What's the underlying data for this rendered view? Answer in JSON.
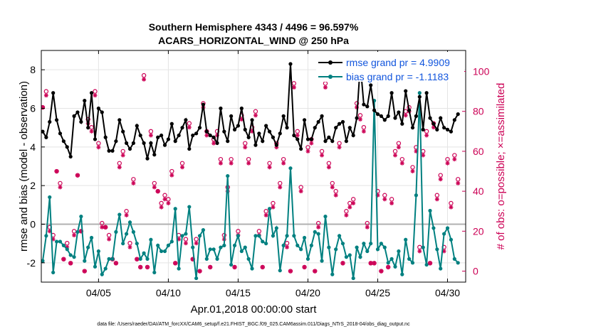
{
  "chart_data": {
    "type": "line",
    "title_line1": "Southern Hemisphere 4343 / 4496 = 96.597%",
    "title_line2": "ACARS_HORIZONTAL_WIND @ 250 hPa",
    "xlabel": "Apr.01,2018 00:00:00 start",
    "ylabel": "rmse and bias (model - observation)",
    "y2label": "# of obs: o=possible; ×=assimilated",
    "xlim": [
      0.9,
      31.3
    ],
    "ylim": [
      -3.0,
      9.0
    ],
    "y2lim": [
      -5.5,
      110.5
    ],
    "x_ticks": [
      5,
      10,
      15,
      20,
      25,
      30
    ],
    "x_tick_labels": [
      "04/05",
      "04/10",
      "04/15",
      "04/20",
      "04/25",
      "04/30"
    ],
    "y_ticks": [
      -2,
      0,
      2,
      4,
      6,
      8
    ],
    "y_tick_labels": [
      "-2",
      "0",
      "2",
      "4",
      "6",
      "8"
    ],
    "y2_ticks": [
      0,
      20,
      40,
      60,
      80,
      100
    ],
    "y2_tick_labels": [
      "0",
      "20",
      "40",
      "60",
      "80",
      "100"
    ],
    "zero_line": 0,
    "footer": "data file: /Users/raeder/DAI/ATM_forcXX/CAM6_setup/f.e21.FHIST_BGC.f09_025.CAM6assim.011/Diags_NTrS_2018-04/obs_diag_output.nc",
    "colors": {
      "rmse": "#000000",
      "bias": "#008080",
      "obs": "#cc0055",
      "zero": "#b0b0b0"
    },
    "series": [
      {
        "name": "rmse",
        "legend": "rmse grand pr = 4.9909",
        "x": [
          1.0,
          1.25,
          1.5,
          1.75,
          2.0,
          2.25,
          2.5,
          2.75,
          3.0,
          3.25,
          3.5,
          3.75,
          4.0,
          4.25,
          4.5,
          4.75,
          5.0,
          5.25,
          5.5,
          5.75,
          6.0,
          6.25,
          6.5,
          6.75,
          7.0,
          7.25,
          7.5,
          7.75,
          8.0,
          8.25,
          8.5,
          8.75,
          9.0,
          9.25,
          9.5,
          9.75,
          10.0,
          10.25,
          10.5,
          10.75,
          11.0,
          11.25,
          11.5,
          11.75,
          12.0,
          12.25,
          12.5,
          12.75,
          13.0,
          13.25,
          13.5,
          13.75,
          14.0,
          14.25,
          14.5,
          14.75,
          15.0,
          15.25,
          15.5,
          15.75,
          16.0,
          16.25,
          16.5,
          16.75,
          17.0,
          17.25,
          17.5,
          17.75,
          18.0,
          18.25,
          18.5,
          18.75,
          19.0,
          19.25,
          19.5,
          19.75,
          20.0,
          20.25,
          20.5,
          20.75,
          21.0,
          21.25,
          21.5,
          21.75,
          22.0,
          22.25,
          22.5,
          22.75,
          23.0,
          23.25,
          23.5,
          23.75,
          24.0,
          24.25,
          24.5,
          24.75,
          25.0,
          25.25,
          25.5,
          25.75,
          26.0,
          26.25,
          26.5,
          26.75,
          27.0,
          27.25,
          27.5,
          27.75,
          28.0,
          28.25,
          28.5,
          28.75,
          29.0,
          29.25,
          29.5,
          29.75,
          30.0,
          30.25,
          30.5,
          30.75
        ],
        "values": [
          4.8,
          4.5,
          5.3,
          6.8,
          5.4,
          4.7,
          4.3,
          4.0,
          3.5,
          5.6,
          5.8,
          5.3,
          6.4,
          5.0,
          6.8,
          4.4,
          6.0,
          5.8,
          4.5,
          3.8,
          3.8,
          4.3,
          5.4,
          4.8,
          4.2,
          3.9,
          4.2,
          5.1,
          4.6,
          4.2,
          3.4,
          4.2,
          3.6,
          4.5,
          4.6,
          4.1,
          4.4,
          5.2,
          4.3,
          4.6,
          5.0,
          5.4,
          3.9,
          4.6,
          4.7,
          5.0,
          6.2,
          4.8,
          4.6,
          4.5,
          4.2,
          6.0,
          4.8,
          4.3,
          5.6,
          4.9,
          5.1,
          6.0,
          4.9,
          4.5,
          5.4,
          4.1,
          4.7,
          4.3,
          5.1,
          4.8,
          4.5,
          4.1,
          4.7,
          5.6,
          5.0,
          8.3,
          4.6,
          4.4,
          3.9,
          5.4,
          4.4,
          4.4,
          5.0,
          5.3,
          5.6,
          4.3,
          4.5,
          4.3,
          5.0,
          5.2,
          5.3,
          4.3,
          5.0,
          4.6,
          5.5,
          8.3,
          6.2,
          6.1,
          7.2,
          5.9,
          5.7,
          5.6,
          5.4,
          5.6,
          6.8,
          5.5,
          5.8,
          5.2,
          6.9,
          5.9,
          5.0,
          5.6,
          6.6,
          4.9,
          6.8,
          5.5,
          5.2,
          4.9,
          5.5,
          5.0,
          4.9,
          4.8,
          5.4,
          5.7
        ]
      },
      {
        "name": "bias",
        "legend": "bias grand pr = -1.1183",
        "x": [
          1.0,
          1.25,
          1.5,
          1.75,
          2.0,
          2.25,
          2.5,
          2.75,
          3.0,
          3.25,
          3.5,
          3.75,
          4.0,
          4.25,
          4.5,
          4.75,
          5.0,
          5.25,
          5.5,
          5.75,
          6.0,
          6.25,
          6.5,
          6.75,
          7.0,
          7.25,
          7.5,
          7.75,
          8.0,
          8.25,
          8.5,
          8.75,
          9.0,
          9.25,
          9.5,
          9.75,
          10.0,
          10.25,
          10.5,
          10.75,
          11.0,
          11.25,
          11.5,
          11.75,
          12.0,
          12.25,
          12.5,
          12.75,
          13.0,
          13.25,
          13.5,
          13.75,
          14.0,
          14.25,
          14.5,
          14.75,
          15.0,
          15.25,
          15.5,
          15.75,
          16.0,
          16.25,
          16.5,
          16.75,
          17.0,
          17.25,
          17.5,
          17.75,
          18.0,
          18.25,
          18.5,
          18.75,
          19.0,
          19.25,
          19.5,
          19.75,
          20.0,
          20.25,
          20.5,
          20.75,
          21.0,
          21.25,
          21.5,
          21.75,
          22.0,
          22.25,
          22.5,
          22.75,
          23.0,
          23.25,
          23.5,
          23.75,
          24.0,
          24.25,
          24.5,
          24.75,
          25.0,
          25.25,
          25.5,
          25.75,
          26.0,
          26.25,
          26.5,
          26.75,
          27.0,
          27.25,
          27.5,
          27.75,
          28.0,
          28.25,
          28.5,
          28.75,
          29.0,
          29.25,
          29.5,
          29.75,
          30.0,
          30.25,
          30.5,
          30.75
        ],
        "values": [
          -1.9,
          -0.6,
          1.4,
          -2.5,
          -0.9,
          -0.9,
          -1.1,
          -1.3,
          -1.6,
          -1.7,
          -0.4,
          0.4,
          -1.9,
          -1.2,
          -0.7,
          -2.2,
          -1.4,
          -2.6,
          -2.3,
          -1.8,
          -1.8,
          -0.4,
          0.5,
          -1.0,
          -0.5,
          0.1,
          -0.4,
          -1.0,
          -1.8,
          -1.5,
          -1.8,
          -0.8,
          -2.5,
          -1.1,
          -1.4,
          -1.4,
          -1.1,
          -0.9,
          0.8,
          -2.3,
          -0.6,
          -0.5,
          0.9,
          -1.2,
          -2.8,
          -0.6,
          -0.3,
          -1.8,
          -1.3,
          -1.3,
          -1.8,
          -1.2,
          -1.1,
          2.5,
          -2.1,
          -1.1,
          -0.6,
          -1.4,
          -1.2,
          -1.8,
          -2.3,
          -0.6,
          -0.6,
          -0.9,
          -1.0,
          0.8,
          -0.6,
          -0.2,
          -2.4,
          -1.1,
          -0.6,
          2.9,
          -0.6,
          -1.1,
          -1.3,
          -0.7,
          -1.8,
          -1.1,
          -0.4,
          -0.5,
          -1.9,
          0.4,
          -1.2,
          -2.6,
          -1.3,
          -0.6,
          -1.0,
          -1.7,
          -1.6,
          -2.8,
          -1.2,
          -1.7,
          -1.0,
          -1.4,
          -1.0,
          6.4,
          -1.3,
          -1.0,
          -1.2,
          -2.0,
          -1.8,
          -2.2,
          -1.4,
          -2.6,
          -0.8,
          -1.8,
          -2.0,
          1.5,
          6.8,
          -1.2,
          -2.1,
          0.7,
          -0.2,
          -1.3,
          -2.3,
          -0.5,
          -0.2,
          -0.8,
          -1.8,
          -2.0
        ]
      },
      {
        "name": "obs_possible",
        "legend": "",
        "x": [
          1.0,
          1.25,
          1.5,
          1.75,
          2.0,
          2.25,
          2.5,
          2.75,
          3.0,
          3.25,
          3.5,
          3.75,
          4.0,
          4.25,
          4.5,
          4.75,
          5.0,
          5.25,
          5.5,
          5.75,
          6.0,
          6.25,
          6.5,
          6.75,
          7.0,
          7.25,
          7.5,
          7.75,
          8.0,
          8.25,
          8.5,
          8.75,
          9.0,
          9.25,
          9.5,
          9.75,
          10.0,
          10.25,
          10.5,
          10.75,
          11.0,
          11.25,
          11.5,
          11.75,
          12.0,
          12.25,
          12.5,
          12.75,
          13.0,
          13.25,
          13.5,
          13.75,
          14.0,
          14.25,
          14.5,
          14.75,
          15.0,
          15.25,
          15.5,
          15.75,
          16.0,
          16.25,
          16.5,
          16.75,
          17.0,
          17.25,
          17.5,
          17.75,
          18.0,
          18.25,
          18.5,
          18.75,
          19.0,
          19.25,
          19.5,
          19.75,
          20.0,
          20.25,
          20.5,
          20.75,
          21.0,
          21.25,
          21.5,
          21.75,
          22.0,
          22.25,
          22.5,
          22.75,
          23.0,
          23.25,
          23.5,
          23.75,
          24.0,
          24.25,
          24.5,
          24.75,
          25.0,
          25.25,
          25.5,
          25.75,
          26.0,
          26.25,
          26.5,
          26.75,
          27.0,
          27.25,
          27.5,
          27.75,
          28.0,
          28.25,
          28.5,
          28.75,
          29.0,
          29.25,
          29.5,
          29.75,
          30.0,
          30.25,
          30.5,
          30.75
        ],
        "values": [
          82,
          90,
          22,
          18,
          50,
          44,
          6,
          14,
          4,
          20,
          48,
          20,
          0,
          76,
          72,
          90,
          64,
          24,
          22,
          18,
          6,
          4,
          54,
          60,
          30,
          14,
          46,
          6,
          2,
          98,
          2,
          70,
          44,
          40,
          34,
          38,
          36,
          50,
          4,
          18,
          54,
          16,
          74,
          6,
          16,
          0,
          84,
          70,
          2,
          66,
          70,
          56,
          18,
          42,
          56,
          2,
          20,
          78,
          64,
          56,
          72,
          80,
          20,
          2,
          30,
          54,
          34,
          64,
          44,
          56,
          14,
          0,
          94,
          70,
          42,
          2,
          62,
          66,
          0,
          24,
          60,
          94,
          54,
          44,
          40,
          64,
          4,
          30,
          34,
          36,
          84,
          78,
          72,
          24,
          4,
          4,
          40,
          0,
          38,
          2,
          36,
          60,
          64,
          56,
          80,
          82,
          52,
          62,
          12,
          60,
          70,
          4,
          74,
          38,
          48,
          12,
          56,
          34,
          58,
          46
        ]
      },
      {
        "name": "obs_assimilated",
        "legend": "",
        "x": [
          1.0,
          1.25,
          1.5,
          1.75,
          2.0,
          2.25,
          2.5,
          2.75,
          3.0,
          3.25,
          3.5,
          3.75,
          4.0,
          4.25,
          4.5,
          4.75,
          5.0,
          5.25,
          5.5,
          5.75,
          6.0,
          6.25,
          6.5,
          6.75,
          7.0,
          7.25,
          7.5,
          7.75,
          8.0,
          8.25,
          8.5,
          8.75,
          9.0,
          9.25,
          9.5,
          9.75,
          10.0,
          10.25,
          10.5,
          10.75,
          11.0,
          11.25,
          11.5,
          11.75,
          12.0,
          12.25,
          12.5,
          12.75,
          13.0,
          13.25,
          13.5,
          13.75,
          14.0,
          14.25,
          14.5,
          14.75,
          15.0,
          15.25,
          15.5,
          15.75,
          16.0,
          16.25,
          16.5,
          16.75,
          17.0,
          17.25,
          17.5,
          17.75,
          18.0,
          18.25,
          18.5,
          18.75,
          19.0,
          19.25,
          19.5,
          19.75,
          20.0,
          20.25,
          20.5,
          20.75,
          21.0,
          21.25,
          21.5,
          21.75,
          22.0,
          22.25,
          22.5,
          22.75,
          23.0,
          23.25,
          23.5,
          23.75,
          24.0,
          24.25,
          24.5,
          24.75,
          25.0,
          25.25,
          25.5,
          25.75,
          26.0,
          26.25,
          26.5,
          26.75,
          27.0,
          27.25,
          27.5,
          27.75,
          28.0,
          28.25,
          28.5,
          28.75,
          29.0,
          29.25,
          29.5,
          29.75,
          30.0,
          30.25,
          30.5,
          30.75
        ],
        "values": [
          82,
          88,
          20,
          16,
          50,
          42,
          6,
          12,
          4,
          18,
          48,
          20,
          0,
          74,
          70,
          88,
          62,
          22,
          22,
          16,
          6,
          4,
          52,
          58,
          28,
          12,
          44,
          6,
          2,
          96,
          2,
          68,
          42,
          40,
          32,
          36,
          34,
          48,
          4,
          16,
          52,
          14,
          72,
          6,
          14,
          0,
          82,
          68,
          2,
          64,
          68,
          54,
          16,
          40,
          54,
          2,
          18,
          76,
          62,
          54,
          70,
          78,
          18,
          2,
          28,
          52,
          32,
          62,
          42,
          54,
          12,
          0,
          92,
          68,
          40,
          2,
          60,
          64,
          0,
          22,
          58,
          92,
          52,
          42,
          38,
          62,
          4,
          28,
          32,
          34,
          82,
          76,
          70,
          22,
          4,
          4,
          38,
          0,
          36,
          2,
          34,
          58,
          62,
          54,
          78,
          80,
          50,
          60,
          10,
          58,
          68,
          4,
          72,
          36,
          46,
          10,
          54,
          32,
          56,
          44
        ]
      }
    ]
  }
}
